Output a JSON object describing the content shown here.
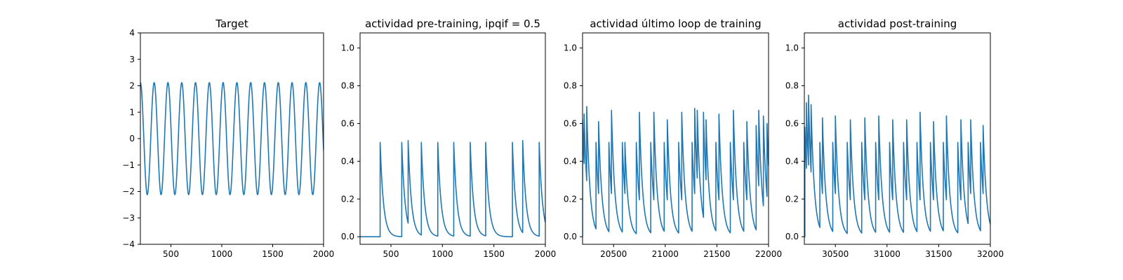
{
  "chart_data": [
    {
      "type": "line",
      "title": "Target",
      "xlabel": "",
      "ylabel": "",
      "xlim": [
        200,
        2000
      ],
      "ylim": [
        -4,
        4
      ],
      "xticks": [
        500,
        1000,
        1500,
        2000
      ],
      "yticks": [
        -4,
        -3,
        -2,
        -1,
        0,
        1,
        2,
        3,
        4
      ],
      "xtick_labels": [
        "500",
        "1000",
        "1500",
        "2000"
      ],
      "ytick_labels": [
        "−4",
        "−3",
        "−2",
        "−1",
        "0",
        "1",
        "2",
        "3",
        "4"
      ],
      "series": [
        {
          "color": "#1f77b4",
          "signal": "sinusoid",
          "amplitude": 2.12,
          "period": 135.5,
          "peaks_x": [
            200,
            335.5,
            471,
            606.5,
            742,
            877.5,
            1013,
            1148.5,
            1284,
            1419.5,
            1555,
            1690.5,
            1826,
            1961.5
          ],
          "start_value": 2.1,
          "end_value": -2.05
        }
      ]
    },
    {
      "type": "line",
      "title": "actividad pre-training, ipqif = 0.5",
      "xlabel": "",
      "ylabel": "",
      "xlim": [
        200,
        2000
      ],
      "ylim": [
        -0.04,
        1.08
      ],
      "xticks": [
        500,
        1000,
        1500,
        2000
      ],
      "yticks": [
        0.0,
        0.2,
        0.4,
        0.6,
        0.8,
        1.0
      ],
      "xtick_labels": [
        "500",
        "1000",
        "1500",
        "2000"
      ],
      "ytick_labels": [
        "0.0",
        "0.2",
        "0.4",
        "0.6",
        "0.8",
        "1.0"
      ],
      "series": [
        {
          "color": "#1f77b4",
          "signal": "decaying spikes",
          "baseline": 0,
          "decay_time": 32,
          "spikes": [
            {
              "x": 395,
              "y": 0.5
            },
            {
              "x": 605,
              "y": 0.5
            },
            {
              "x": 667,
              "y": 0.51
            },
            {
              "x": 795,
              "y": 0.5
            },
            {
              "x": 955,
              "y": 0.5
            },
            {
              "x": 1110,
              "y": 0.5
            },
            {
              "x": 1270,
              "y": 0.5
            },
            {
              "x": 1420,
              "y": 0.5
            },
            {
              "x": 1680,
              "y": 0.5
            },
            {
              "x": 1780,
              "y": 0.51
            },
            {
              "x": 1940,
              "y": 0.5
            }
          ]
        }
      ]
    },
    {
      "type": "line",
      "title": "actividad último loop de training",
      "xlabel": "",
      "ylabel": "",
      "xlim": [
        20200,
        22000
      ],
      "ylim": [
        -0.04,
        1.08
      ],
      "xticks": [
        20500,
        21000,
        21500,
        22000
      ],
      "yticks": [
        0.0,
        0.2,
        0.4,
        0.6,
        0.8,
        1.0
      ],
      "xtick_labels": [
        "20500",
        "21000",
        "21500",
        "22000"
      ],
      "ytick_labels": [
        "0.0",
        "0.2",
        "0.4",
        "0.6",
        "0.8",
        "1.0"
      ],
      "series": [
        {
          "color": "#1f77b4",
          "signal": "decaying spikes",
          "baseline": 0,
          "decay_time": 32,
          "spikes": [
            {
              "x": 20200,
              "y": 0.62
            },
            {
              "x": 20215,
              "y": 0.65
            },
            {
              "x": 20240,
              "y": 0.69
            },
            {
              "x": 20330,
              "y": 0.5
            },
            {
              "x": 20355,
              "y": 0.61
            },
            {
              "x": 20455,
              "y": 0.5
            },
            {
              "x": 20480,
              "y": 0.67
            },
            {
              "x": 20585,
              "y": 0.5
            },
            {
              "x": 20610,
              "y": 0.5
            },
            {
              "x": 20720,
              "y": 0.5
            },
            {
              "x": 20750,
              "y": 0.66
            },
            {
              "x": 20860,
              "y": 0.5
            },
            {
              "x": 20890,
              "y": 0.66
            },
            {
              "x": 20990,
              "y": 0.5
            },
            {
              "x": 21020,
              "y": 0.62
            },
            {
              "x": 21130,
              "y": 0.5
            },
            {
              "x": 21160,
              "y": 0.66
            },
            {
              "x": 21260,
              "y": 0.5
            },
            {
              "x": 21285,
              "y": 0.68
            },
            {
              "x": 21310,
              "y": 0.67
            },
            {
              "x": 21370,
              "y": 0.66
            },
            {
              "x": 21395,
              "y": 0.62
            },
            {
              "x": 21490,
              "y": 0.5
            },
            {
              "x": 21520,
              "y": 0.65
            },
            {
              "x": 21630,
              "y": 0.5
            },
            {
              "x": 21660,
              "y": 0.67
            },
            {
              "x": 21760,
              "y": 0.5
            },
            {
              "x": 21790,
              "y": 0.61
            },
            {
              "x": 21880,
              "y": 0.59
            },
            {
              "x": 21905,
              "y": 0.67
            },
            {
              "x": 21950,
              "y": 0.64
            },
            {
              "x": 21985,
              "y": 0.6
            }
          ]
        }
      ]
    },
    {
      "type": "line",
      "title": "actividad post-training",
      "xlabel": "",
      "ylabel": "",
      "xlim": [
        30200,
        32000
      ],
      "ylim": [
        -0.04,
        1.08
      ],
      "xticks": [
        30500,
        31000,
        31500,
        32000
      ],
      "yticks": [
        0.0,
        0.2,
        0.4,
        0.6,
        0.8,
        1.0
      ],
      "xtick_labels": [
        "30500",
        "31000",
        "31500",
        "32000"
      ],
      "ytick_labels": [
        "0.0",
        "0.2",
        "0.4",
        "0.6",
        "0.8",
        "1.0"
      ],
      "series": [
        {
          "color": "#1f77b4",
          "signal": "decaying spikes",
          "baseline": 0,
          "decay_time": 32,
          "spikes": [
            {
              "x": 30205,
              "y": 0.58
            },
            {
              "x": 30220,
              "y": 0.71
            },
            {
              "x": 30240,
              "y": 0.75
            },
            {
              "x": 30265,
              "y": 0.7
            },
            {
              "x": 30350,
              "y": 0.5
            },
            {
              "x": 30375,
              "y": 0.63
            },
            {
              "x": 30475,
              "y": 0.5
            },
            {
              "x": 30500,
              "y": 0.64
            },
            {
              "x": 30615,
              "y": 0.5
            },
            {
              "x": 30645,
              "y": 0.62
            },
            {
              "x": 30755,
              "y": 0.5
            },
            {
              "x": 30785,
              "y": 0.63
            },
            {
              "x": 30890,
              "y": 0.5
            },
            {
              "x": 30920,
              "y": 0.64
            },
            {
              "x": 31025,
              "y": 0.5
            },
            {
              "x": 31055,
              "y": 0.62
            },
            {
              "x": 31160,
              "y": 0.5
            },
            {
              "x": 31190,
              "y": 0.62
            },
            {
              "x": 31290,
              "y": 0.5
            },
            {
              "x": 31320,
              "y": 0.66
            },
            {
              "x": 31420,
              "y": 0.5
            },
            {
              "x": 31450,
              "y": 0.61
            },
            {
              "x": 31545,
              "y": 0.5
            },
            {
              "x": 31575,
              "y": 0.64
            },
            {
              "x": 31685,
              "y": 0.5
            },
            {
              "x": 31715,
              "y": 0.62
            },
            {
              "x": 31785,
              "y": 0.5
            },
            {
              "x": 31810,
              "y": 0.62
            },
            {
              "x": 31905,
              "y": 0.5
            },
            {
              "x": 31930,
              "y": 0.59
            }
          ]
        }
      ]
    }
  ]
}
